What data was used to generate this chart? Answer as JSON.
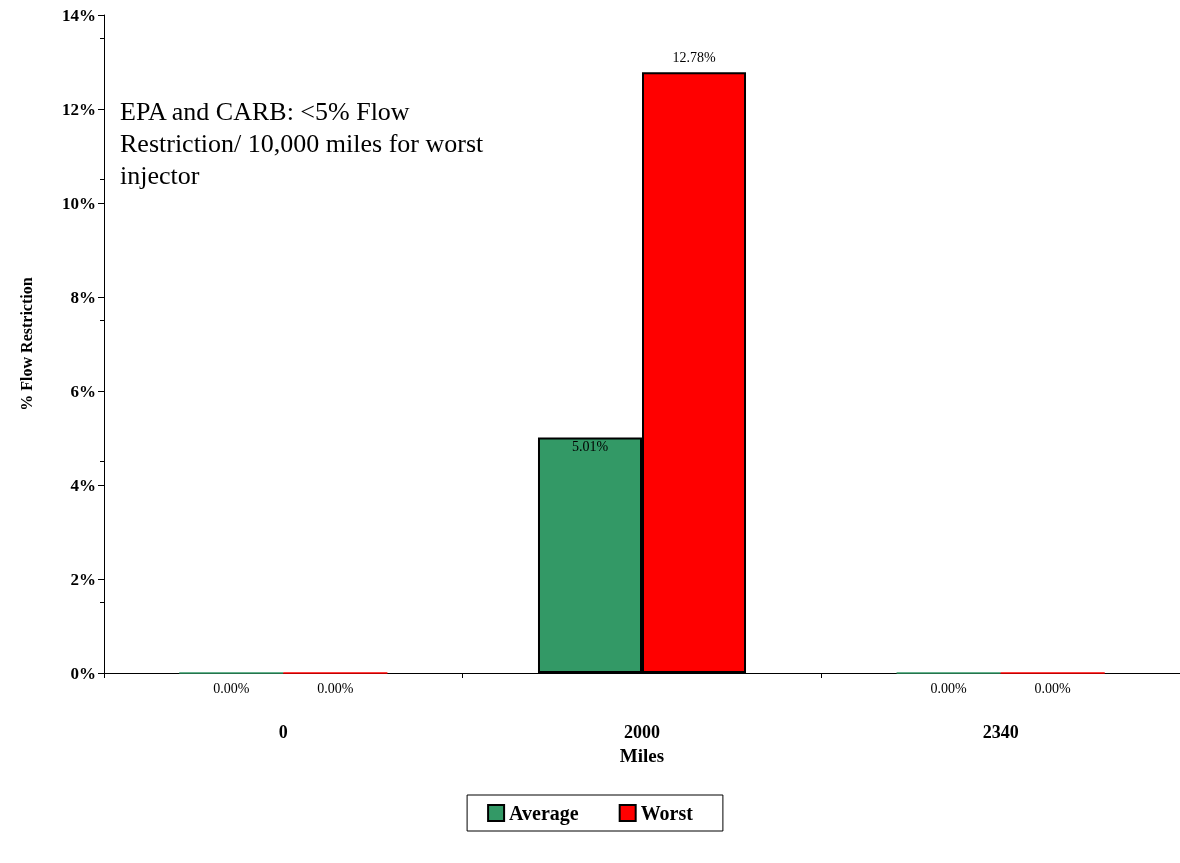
{
  "chart_data": {
    "type": "bar",
    "categories": [
      "0",
      "2000",
      "2340"
    ],
    "xlabel": "Miles",
    "ylabel": "% Flow Restriction",
    "series": [
      {
        "name": "Average",
        "color": "#339966",
        "values": [
          0,
          5.01,
          0
        ],
        "value_labels": [
          "0.00%",
          "5.01%",
          "0.00%"
        ]
      },
      {
        "name": "Worst",
        "color": "#ff0000",
        "values": [
          0,
          12.78,
          0
        ],
        "value_labels": [
          "0.00%",
          "12.78%",
          "0.00%"
        ]
      }
    ],
    "ylim": [
      0,
      14
    ],
    "yticks": [
      {
        "value": 0,
        "label": "0%"
      },
      {
        "value": 2,
        "label": "2%"
      },
      {
        "value": 4,
        "label": "4%"
      },
      {
        "value": 6,
        "label": "6%"
      },
      {
        "value": 8,
        "label": "8%"
      },
      {
        "value": 10,
        "label": "10%"
      },
      {
        "value": 12,
        "label": "12%"
      },
      {
        "value": 14,
        "label": "14%"
      }
    ],
    "annotations": [
      "EPA and CARB: <5% Flow Restriction/ 10,000 miles for worst injector"
    ],
    "grid": false,
    "legend": "bottom"
  }
}
